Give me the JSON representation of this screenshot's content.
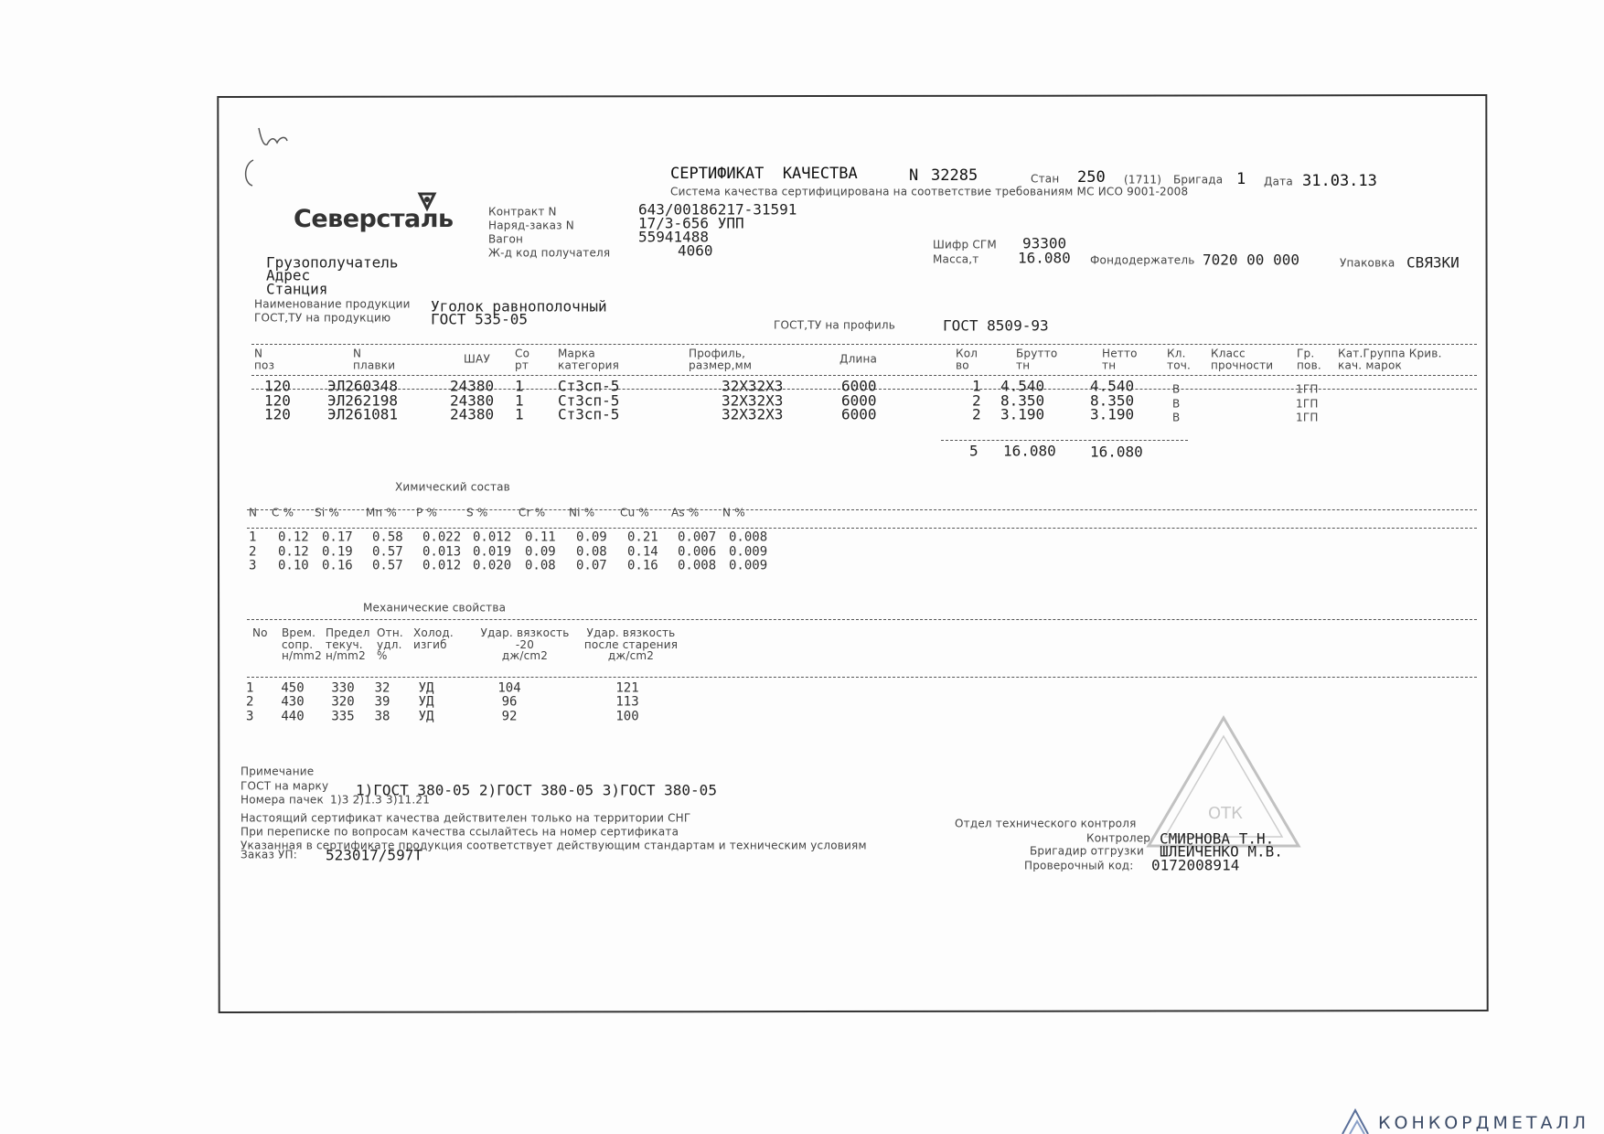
{
  "logo": "Северсталь",
  "header": {
    "title": "СЕРТИФИКАТ  КАЧЕСТВА",
    "number_label": "N",
    "number": "32285",
    "mill_label": "Стан",
    "mill": "250",
    "mill_code": "(1711)",
    "brigade_label": "Бригада",
    "brigade": "1",
    "date_label": "Дата",
    "date": "31.03.13",
    "quality_system": "Система качества сертифицирована на соответствие требованиям МС ИСО 9001-2008"
  },
  "shipment": [
    {
      "label": "Контракт N",
      "value": "643/00186217-31591"
    },
    {
      "label": "Наряд-заказ N",
      "value": "17/3-656 УПП"
    },
    {
      "label": "Вагон",
      "value": "55941488"
    },
    {
      "label": "Ж-д код получателя",
      "value": "4060"
    }
  ],
  "mass": {
    "code_label": "Шифр СГМ",
    "code": "93300",
    "mass_label": "Масса,т",
    "mass": "16.080",
    "holder_label": "Фондодержатель",
    "holder": "7020 00 000",
    "package_label": "Упаковка",
    "package": "СВЯЗКИ"
  },
  "consignee": [
    "Грузополучатель",
    "Адрес",
    "Станция"
  ],
  "product": {
    "name_label": "Наименование продукции",
    "name": "Уголок равнополочный",
    "gost_label": "ГОСТ,ТУ на продукцию",
    "gost": "ГОСТ 535-05",
    "profile_gost_label": "ГОСТ,ТУ на профиль",
    "profile_gost": "ГОСТ 8509-93"
  },
  "main_table": {
    "headers": [
      "N\nпоз",
      "N\nплавки",
      "ШАУ",
      "Со\nрт",
      "Марка\nкатегория",
      "Профиль,\nразмер,мм",
      "Длина",
      "Кол\nво",
      "Брутто\nтн",
      "Нетто\nтн",
      "Кл.\nточ.",
      "Класс\nпрочности",
      "Гр.\nпов.",
      "Кат.Группа Крив.\nкач. марок"
    ],
    "rows": [
      {
        "pos": "120",
        "melt": "ЭЛ260348",
        "shau": "24380",
        "sort": "1",
        "grade": "Ст3сп-5",
        "profile": "32Х32Х3",
        "length": "6000",
        "qty": "1",
        "gross": "4.540",
        "net": "4.540",
        "accuracy": "В",
        "surface": "1ГП"
      },
      {
        "pos": "120",
        "melt": "ЭЛ262198",
        "shau": "24380",
        "sort": "1",
        "grade": "Ст3сп-5",
        "profile": "32Х32Х3",
        "length": "6000",
        "qty": "2",
        "gross": "8.350",
        "net": "8.350",
        "accuracy": "В",
        "surface": "1ГП"
      },
      {
        "pos": "120",
        "melt": "ЭЛ261081",
        "shau": "24380",
        "sort": "1",
        "grade": "Ст3сп-5",
        "profile": "32Х32Х3",
        "length": "6000",
        "qty": "2",
        "gross": "3.190",
        "net": "3.190",
        "accuracy": "В",
        "surface": "1ГП"
      }
    ],
    "totals": {
      "qty": "5",
      "gross": "16.080",
      "net": "16.080"
    }
  },
  "chemistry": {
    "title": "Химический состав",
    "headers": [
      "N",
      "C %",
      "Si %",
      "Mn %",
      "P %",
      "S %",
      "Cr %",
      "Ni %",
      "Cu %",
      "As %",
      "N %"
    ],
    "rows": [
      [
        "1",
        "0.12",
        "0.17",
        "0.58",
        "0.022",
        "0.012",
        "0.11",
        "0.09",
        "0.21",
        "0.007",
        "0.008"
      ],
      [
        "2",
        "0.12",
        "0.19",
        "0.57",
        "0.013",
        "0.019",
        "0.09",
        "0.08",
        "0.14",
        "0.006",
        "0.009"
      ],
      [
        "3",
        "0.10",
        "0.16",
        "0.57",
        "0.012",
        "0.020",
        "0.08",
        "0.07",
        "0.16",
        "0.008",
        "0.009"
      ]
    ]
  },
  "mechanics": {
    "title": "Механические свойства",
    "headers": [
      "No",
      "Врем.\nсопр.\nн/mm2",
      "Предел\nтекуч.\nн/mm2",
      "Отн.\nудл.\n%",
      "Холод.\nизгиб",
      "Удар. вязкость\n-20\nдж/cm2",
      "Удар. вязкость\nпосле старения\nдж/cm2"
    ],
    "rows": [
      [
        "1",
        "450",
        "330",
        "32",
        "УД",
        "104",
        "121"
      ],
      [
        "2",
        "430",
        "320",
        "39",
        "УД",
        "96",
        "113"
      ],
      [
        "3",
        "440",
        "335",
        "38",
        "УД",
        "92",
        "100"
      ]
    ]
  },
  "notes": {
    "label": "Примечание",
    "grade_label": "ГОСТ на марку",
    "grade": "1)ГОСТ 380-05 2)ГОСТ 380-05 3)ГОСТ 380-05",
    "bundles_label": "Номера пачек",
    "bundles": "1)3 2)1.3 3)11.21",
    "lines": [
      "Настоящий сертификат качества действителен только на территории СНГ",
      "При переписке по вопросам качества ссылайтесь на номер сертификата",
      "Указанная в сертификате продукция соответствует действующим стандартам и техническим условиям"
    ],
    "order_label": "Заказ УП:",
    "order": "523017/597Т"
  },
  "signatures": {
    "department": "Отдел технического контроля",
    "controller_label": "Контролер",
    "controller": "СМИРНОВА Т.Н.",
    "foreman_label": "Бригадир отгрузки",
    "foreman": "ШЛЕЙЧЕНКО М.В.",
    "check_label": "Проверочный код:",
    "check": "0172008914"
  },
  "footer_brand": "КОНКОРДМЕТАЛЛ"
}
